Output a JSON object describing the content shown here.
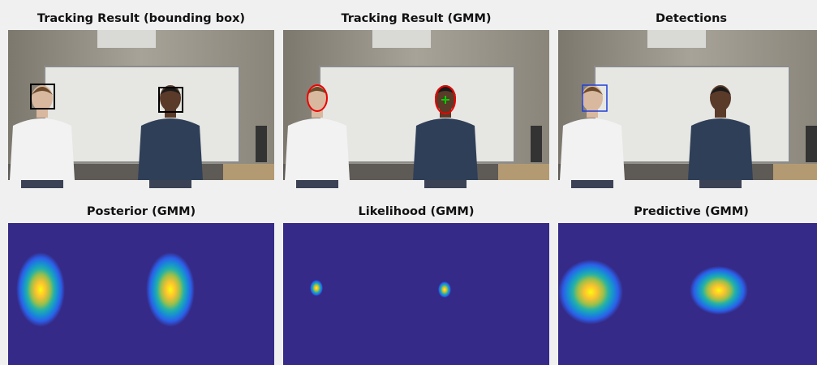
{
  "panels": [
    {
      "title": "Tracking Result (bounding box)"
    },
    {
      "title": "Tracking Result (GMM)"
    },
    {
      "title": "Detections"
    },
    {
      "title": "Posterior (GMM)"
    },
    {
      "title": "Likelihood (GMM)"
    },
    {
      "title": "Predictive (GMM)"
    }
  ]
}
